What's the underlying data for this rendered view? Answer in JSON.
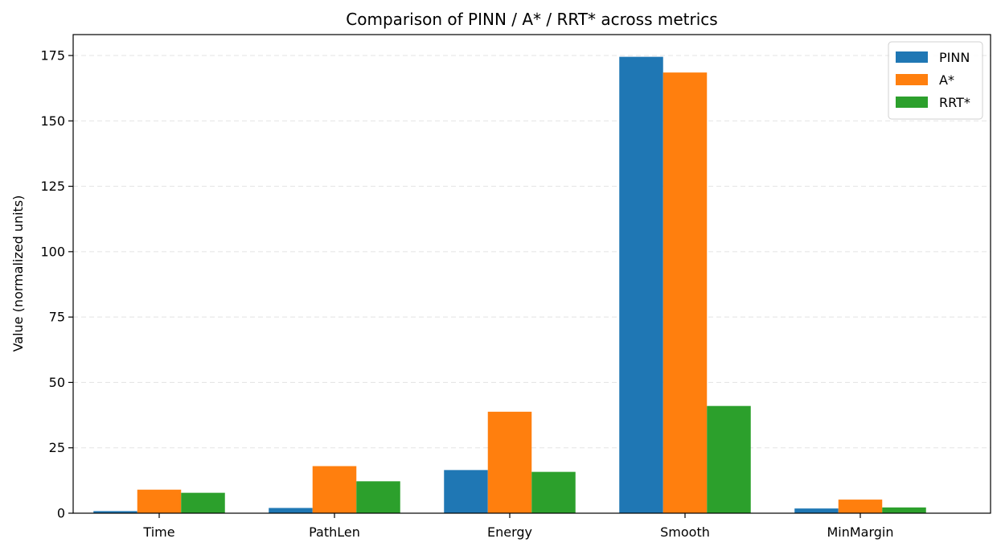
{
  "chart_data": {
    "type": "bar",
    "title": "Comparison of PINN / A* / RRT* across metrics",
    "xlabel": "",
    "ylabel": "Value (normalized units)",
    "categories": [
      "Time",
      "PathLen",
      "Energy",
      "Smooth",
      "MinMargin"
    ],
    "series": [
      {
        "name": "PINN",
        "color": "#1f77b4",
        "values": [
          0.8,
          2.0,
          16.5,
          174.5,
          1.8
        ]
      },
      {
        "name": "A*",
        "color": "#ff7f0e",
        "values": [
          9.0,
          18.0,
          38.8,
          168.5,
          5.2
        ]
      },
      {
        "name": "RRT*",
        "color": "#2ca02c",
        "values": [
          7.8,
          12.2,
          15.8,
          41.0,
          2.2
        ]
      }
    ],
    "ylim": [
      0,
      183
    ],
    "yticks": [
      0,
      25,
      50,
      75,
      100,
      125,
      150,
      175
    ],
    "grid": "y-dashed",
    "legend": "top-right"
  }
}
